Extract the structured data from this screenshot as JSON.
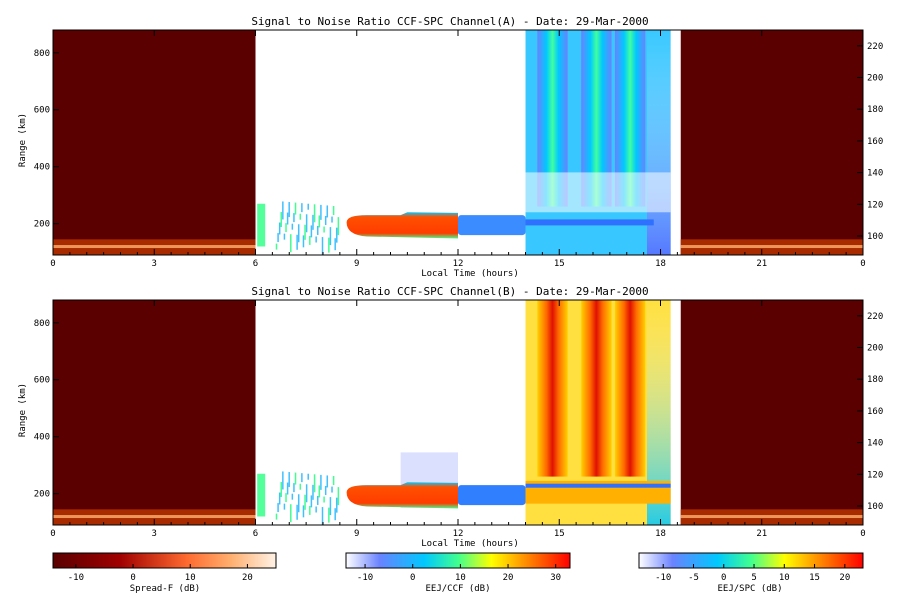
{
  "chart_data": [
    {
      "type": "heatmap",
      "title": "Signal to Noise Ratio CCF-SPC Channel(A) - Date: 29-Mar-2000",
      "xlabel": "Local Time (hours)",
      "ylabel": "Range (km)",
      "x_ticks": [
        "0",
        "3",
        "6",
        "9",
        "12",
        "15",
        "18",
        "21",
        "0"
      ],
      "y_ticks": [
        200,
        400,
        600,
        800
      ],
      "y2_ticks": [
        100,
        120,
        140,
        160,
        180,
        200,
        220
      ],
      "xlim": [
        0,
        24
      ],
      "ylim": [
        90,
        880
      ],
      "y2lim": [
        88,
        230
      ],
      "segments": [
        {
          "name": "Spread-F",
          "x_range": [
            0,
            6
          ],
          "y_range": [
            90,
            880
          ],
          "typical_db": -12,
          "bottom_layer_db": 10
        },
        {
          "name": "EEJ/CCF",
          "x_range": [
            6,
            12
          ],
          "y_range": [
            150,
            240
          ],
          "typical_db": 28
        },
        {
          "name": "EEJ/CCF",
          "x_range": [
            12,
            14
          ],
          "y_range": [
            160,
            230
          ],
          "typical_db": 0
        },
        {
          "name": "EEJ/SPC",
          "x_range": [
            14,
            18.3
          ],
          "y_range": [
            90,
            880
          ],
          "bands_hours": [
            14.8,
            16.1,
            17.1
          ],
          "typical_db": 0
        },
        {
          "name": "Spread-F",
          "x_range": [
            18.6,
            24
          ],
          "y_range": [
            90,
            880
          ],
          "typical_db": -12,
          "bottom_layer_db": 10
        }
      ]
    },
    {
      "type": "heatmap",
      "title": "Signal to Noise Ratio CCF-SPC Channel(B) - Date: 29-Mar-2000",
      "xlabel": "Local Time (hours)",
      "ylabel": "Range (km)",
      "x_ticks": [
        "0",
        "3",
        "6",
        "9",
        "12",
        "15",
        "18",
        "21",
        "0"
      ],
      "y_ticks": [
        200,
        400,
        600,
        800
      ],
      "y2_ticks": [
        100,
        120,
        140,
        160,
        180,
        200,
        220
      ],
      "xlim": [
        0,
        24
      ],
      "ylim": [
        90,
        880
      ],
      "y2lim": [
        88,
        230
      ],
      "segments": [
        {
          "name": "Spread-F",
          "x_range": [
            0,
            6
          ],
          "y_range": [
            90,
            880
          ],
          "typical_db": -12,
          "bottom_layer_db": 10
        },
        {
          "name": "EEJ/CCF",
          "x_range": [
            6,
            12
          ],
          "y_range": [
            150,
            240
          ],
          "typical_db": 28
        },
        {
          "name": "EEJ/CCF",
          "x_range": [
            12,
            14
          ],
          "y_range": [
            160,
            230
          ],
          "typical_db": 0
        },
        {
          "name": "EEJ/SPC",
          "x_range": [
            14,
            18.3
          ],
          "y_range": [
            90,
            880
          ],
          "bands_hours": [
            14.8,
            16.1,
            17.1
          ],
          "typical_db": 15
        },
        {
          "name": "Spread-F",
          "x_range": [
            18.6,
            24
          ],
          "y_range": [
            90,
            880
          ],
          "typical_db": -12,
          "bottom_layer_db": 10
        }
      ]
    }
  ],
  "colorbars": [
    {
      "label": "Spread-F (dB)",
      "ticks": [
        "-10",
        "0",
        "10",
        "20"
      ],
      "range": [
        -14,
        25
      ],
      "colors": [
        "#5a0000",
        "#a00000",
        "#ff6a30",
        "#ffb070",
        "#fff2e6"
      ]
    },
    {
      "label": "EEJ/CCF (dB)",
      "ticks": [
        "-10",
        "0",
        "10",
        "20",
        "30"
      ],
      "range": [
        -14,
        33
      ],
      "colors": [
        "#ffffff",
        "#6a82ff",
        "#00c8ff",
        "#40ff90",
        "#ffff00",
        "#ff8000",
        "#ff0000"
      ]
    },
    {
      "label": "EEJ/SPC (dB)",
      "ticks": [
        "-10",
        "-5",
        "0",
        "5",
        "10",
        "15",
        "20"
      ],
      "range": [
        -14,
        23
      ],
      "colors": [
        "#ffffff",
        "#6a82ff",
        "#00c8ff",
        "#40ff90",
        "#ffff00",
        "#ff8000",
        "#ff0000"
      ]
    }
  ]
}
